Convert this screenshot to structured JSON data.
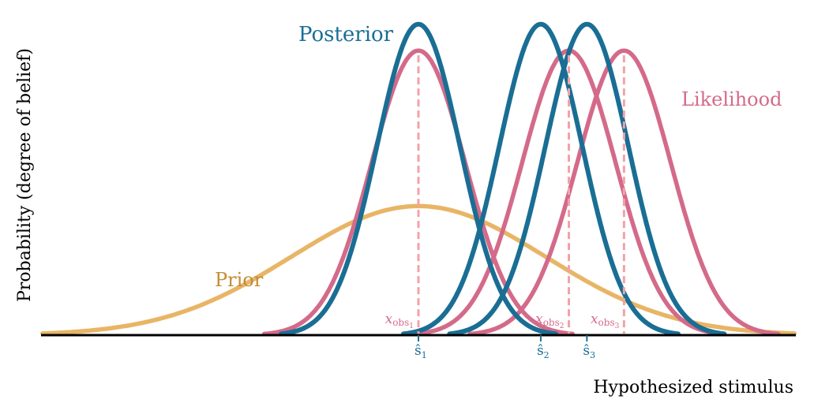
{
  "chart_data": {
    "type": "line",
    "xlabel": "Hypothesized stimulus",
    "ylabel": "Probability (degree of belief)",
    "grid": false,
    "legend": "inline-labels",
    "colors": {
      "prior": "#e8b566",
      "likelihood": "#d46a8a",
      "posterior": "#1a6e94",
      "dashed": "#f2a2a8",
      "axis": "#000000"
    },
    "series": [
      {
        "name": "Prior",
        "kind": "prior",
        "curves": [
          {
            "mu": 0.0,
            "sigma": 1.27,
            "peak": 0.44
          }
        ]
      },
      {
        "name": "Likelihood",
        "kind": "likelihood",
        "curves": [
          {
            "mu": 0.0,
            "sigma": 0.466,
            "peak": 0.97
          },
          {
            "mu": 1.5,
            "sigma": 0.466,
            "peak": 0.97
          },
          {
            "mu": 2.05,
            "sigma": 0.466,
            "peak": 0.97
          }
        ]
      },
      {
        "name": "Posterior",
        "kind": "posterior",
        "curves": [
          {
            "mu": 0.0,
            "sigma": 0.415,
            "peak": 1.06
          },
          {
            "mu": 1.22,
            "sigma": 0.415,
            "peak": 1.06
          },
          {
            "mu": 1.68,
            "sigma": 0.415,
            "peak": 1.06
          }
        ]
      }
    ],
    "observations": [
      {
        "label_main": "x",
        "label_sub": "obs",
        "label_index": "1",
        "x": 0.0
      },
      {
        "label_main": "x",
        "label_sub": "obs",
        "label_index": "2",
        "x": 1.5
      },
      {
        "label_main": "x",
        "label_sub": "obs",
        "label_index": "3",
        "x": 2.05
      }
    ],
    "estimates": [
      {
        "label_main": "ŝ",
        "label_index": "1",
        "x": 0.0
      },
      {
        "label_main": "ŝ",
        "label_index": "2",
        "x": 1.22
      },
      {
        "label_main": "ŝ",
        "label_index": "3",
        "x": 1.68
      }
    ],
    "xlim": [
      -3.75,
      3.75
    ],
    "ylim": [
      0,
      1.1
    ]
  }
}
